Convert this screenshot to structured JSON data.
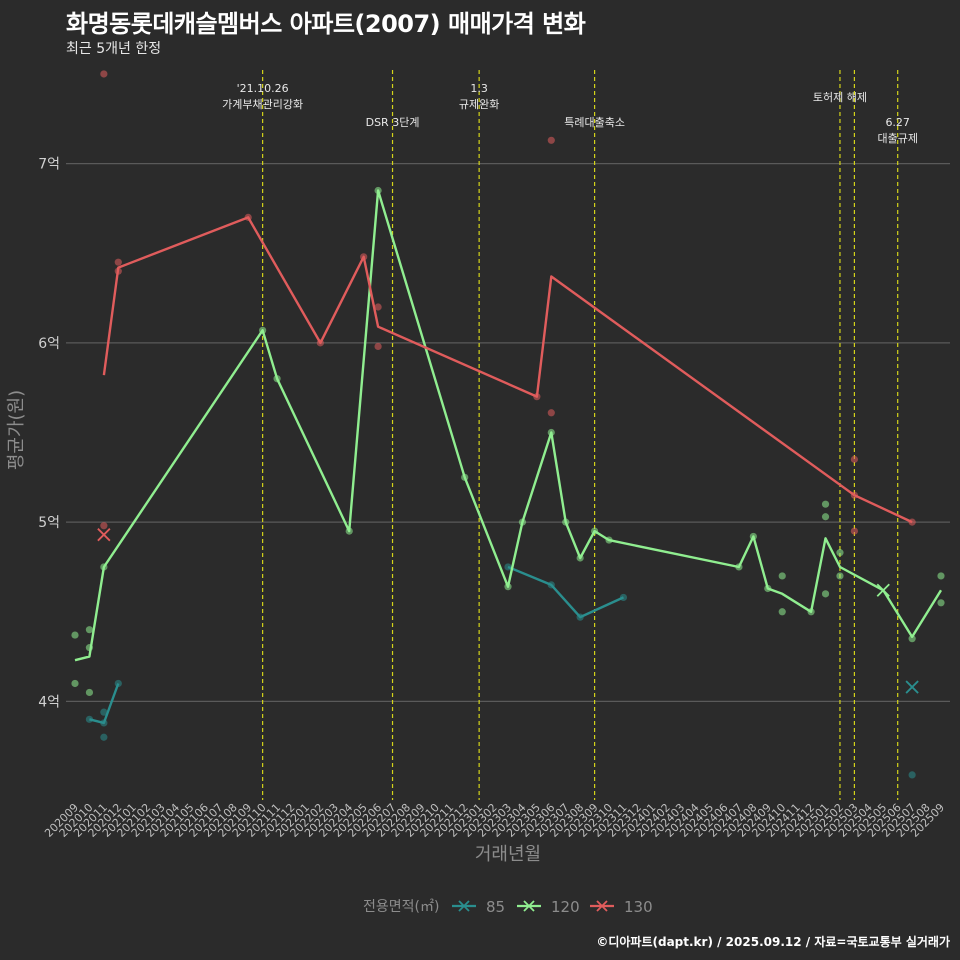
{
  "page": {
    "title": "화명동롯데캐슬멤버스 아파트(2007) 매매가격 변화",
    "subtitle": "최근 5개년 한정",
    "credit": "©디아파트(dapt.kr) / 2025.09.12 / 자료=국토교통부 실거래가"
  },
  "chart_data": {
    "type": "line",
    "title": "화명동롯데캐슬멤버스 아파트(2007) 매매가격 변화",
    "subtitle": "최근 5개년 한정",
    "xlabel": "거래년월",
    "ylabel": "평균가(원)",
    "ylim": [
      3.45,
      7.55
    ],
    "grid": true,
    "legend": {
      "title": "전용면적(㎡)",
      "position": "bottom"
    },
    "x_categories": [
      "202009",
      "202010",
      "202011",
      "202012",
      "202101",
      "202102",
      "202103",
      "202104",
      "202105",
      "202106",
      "202107",
      "202108",
      "202109",
      "202110",
      "202111",
      "202112",
      "202201",
      "202202",
      "202203",
      "202204",
      "202205",
      "202206",
      "202207",
      "202208",
      "202209",
      "202210",
      "202211",
      "202212",
      "202301",
      "202302",
      "202303",
      "202304",
      "202305",
      "202306",
      "202307",
      "202308",
      "202309",
      "202310",
      "202311",
      "202312",
      "202401",
      "202402",
      "202403",
      "202404",
      "202405",
      "202406",
      "202407",
      "202408",
      "202409",
      "202410",
      "202411",
      "202412",
      "202501",
      "202502",
      "202503",
      "202504",
      "202505",
      "202506",
      "202507",
      "202508",
      "202509"
    ],
    "y_ticks": [
      {
        "value": 4,
        "label": "4억"
      },
      {
        "value": 5,
        "label": "5억"
      },
      {
        "value": 6,
        "label": "6억"
      },
      {
        "value": 7,
        "label": "7억"
      }
    ],
    "events": [
      {
        "x": "202110",
        "label": [
          "'21.10.26",
          "가계부채관리강화"
        ],
        "label_row": 0
      },
      {
        "x": "202207",
        "label": [
          "DSR 3단계"
        ],
        "label_row": 2
      },
      {
        "x": "202301",
        "label": [
          "1.3",
          "규제완화"
        ],
        "label_row": 0
      },
      {
        "x": "202309",
        "label": [
          "특례대출축소"
        ],
        "label_row": 2
      },
      {
        "x": "202502",
        "label": [
          "토허제 해제"
        ],
        "label_row": 1
      },
      {
        "x": "202503",
        "label": [],
        "label_row": 0
      },
      {
        "x": "202506",
        "label": [
          "6.27",
          "대출규제"
        ],
        "label_row": 2
      }
    ],
    "series": [
      {
        "name": "85",
        "color": "#2a8e8e",
        "line": [
          [
            "202009",
            4.24
          ],
          [
            "202010",
            4.25
          ],
          [
            "202011",
            3.89
          ],
          [
            "202012",
            4.1
          ]
        ],
        "line_segments": [
          [
            [
              "202010",
              3.9
            ],
            [
              "202011",
              3.88
            ],
            [
              "202012",
              4.1
            ]
          ],
          [
            [
              "202303",
              4.75
            ],
            [
              "202306",
              4.65
            ],
            [
              "202308",
              4.47
            ],
            [
              "202311",
              4.58
            ]
          ]
        ],
        "points": [
          [
            "202010",
            3.9
          ],
          [
            "202011",
            3.94
          ],
          [
            "202011",
            3.8
          ],
          [
            "202011",
            3.88
          ],
          [
            "202012",
            4.1
          ],
          [
            "202303",
            4.75
          ],
          [
            "202306",
            4.65
          ],
          [
            "202308",
            4.47
          ],
          [
            "202311",
            4.58
          ],
          [
            "202507",
            3.59
          ]
        ],
        "crosses": [
          [
            "202507",
            4.08
          ]
        ]
      },
      {
        "name": "120",
        "color": "#90ee90",
        "line_segments": [
          [
            [
              "202009",
              4.23
            ],
            [
              "202010",
              4.25
            ],
            [
              "202011",
              4.75
            ],
            [
              "202110",
              6.07
            ],
            [
              "202111",
              5.8
            ],
            [
              "202204",
              4.95
            ],
            [
              "202206",
              6.85
            ],
            [
              "202212",
              5.25
            ],
            [
              "202303",
              4.64
            ],
            [
              "202304",
              5.0
            ],
            [
              "202306",
              5.5
            ],
            [
              "202307",
              5.0
            ],
            [
              "202308",
              4.8
            ],
            [
              "202309",
              4.95
            ],
            [
              "202310",
              4.9
            ],
            [
              "202407",
              4.75
            ],
            [
              "202408",
              4.92
            ],
            [
              "202409",
              4.63
            ],
            [
              "202410",
              4.6
            ],
            [
              "202412",
              4.5
            ],
            [
              "202501",
              4.91
            ],
            [
              "202502",
              4.75
            ],
            [
              "202505",
              4.62
            ],
            [
              "202507",
              4.36
            ],
            [
              "202509",
              4.62
            ]
          ]
        ],
        "points": [
          [
            "202009",
            4.37
          ],
          [
            "202009",
            4.1
          ],
          [
            "202010",
            4.4
          ],
          [
            "202010",
            4.3
          ],
          [
            "202010",
            4.05
          ],
          [
            "202011",
            4.75
          ],
          [
            "202110",
            6.07
          ],
          [
            "202111",
            5.8
          ],
          [
            "202204",
            4.95
          ],
          [
            "202206",
            6.85
          ],
          [
            "202212",
            5.25
          ],
          [
            "202303",
            4.64
          ],
          [
            "202304",
            5.0
          ],
          [
            "202306",
            5.5
          ],
          [
            "202307",
            5.0
          ],
          [
            "202308",
            4.8
          ],
          [
            "202309",
            4.95
          ],
          [
            "202310",
            4.9
          ],
          [
            "202407",
            4.75
          ],
          [
            "202408",
            4.92
          ],
          [
            "202409",
            4.63
          ],
          [
            "202410",
            4.7
          ],
          [
            "202410",
            4.5
          ],
          [
            "202412",
            4.5
          ],
          [
            "202501",
            5.1
          ],
          [
            "202501",
            5.03
          ],
          [
            "202501",
            4.6
          ],
          [
            "202502",
            4.83
          ],
          [
            "202502",
            4.7
          ],
          [
            "202507",
            4.35
          ],
          [
            "202509",
            4.7
          ],
          [
            "202509",
            4.55
          ]
        ],
        "crosses": [
          [
            "202505",
            4.62
          ]
        ]
      },
      {
        "name": "130",
        "color": "#e05c5c",
        "line_segments": [
          [
            [
              "202011",
              5.82
            ],
            [
              "202012",
              6.42
            ],
            [
              "202109",
              6.7
            ],
            [
              "202202",
              6.0
            ],
            [
              "202205",
              6.48
            ],
            [
              "202206",
              6.09
            ],
            [
              "202305",
              5.7
            ],
            [
              "202306",
              6.37
            ],
            [
              "202503",
              5.15
            ],
            [
              "202507",
              5.0
            ]
          ]
        ],
        "points": [
          [
            "202011",
            7.5
          ],
          [
            "202011",
            4.98
          ],
          [
            "202012",
            6.45
          ],
          [
            "202012",
            6.4
          ],
          [
            "202109",
            6.7
          ],
          [
            "202202",
            6.0
          ],
          [
            "202205",
            6.48
          ],
          [
            "202206",
            6.2
          ],
          [
            "202206",
            5.98
          ],
          [
            "202305",
            5.7
          ],
          [
            "202306",
            7.13
          ],
          [
            "202306",
            5.61
          ],
          [
            "202503",
            5.35
          ],
          [
            "202503",
            4.95
          ],
          [
            "202503",
            5.15
          ],
          [
            "202507",
            5.0
          ]
        ],
        "crosses": [
          [
            "202011",
            4.93
          ]
        ]
      }
    ]
  }
}
